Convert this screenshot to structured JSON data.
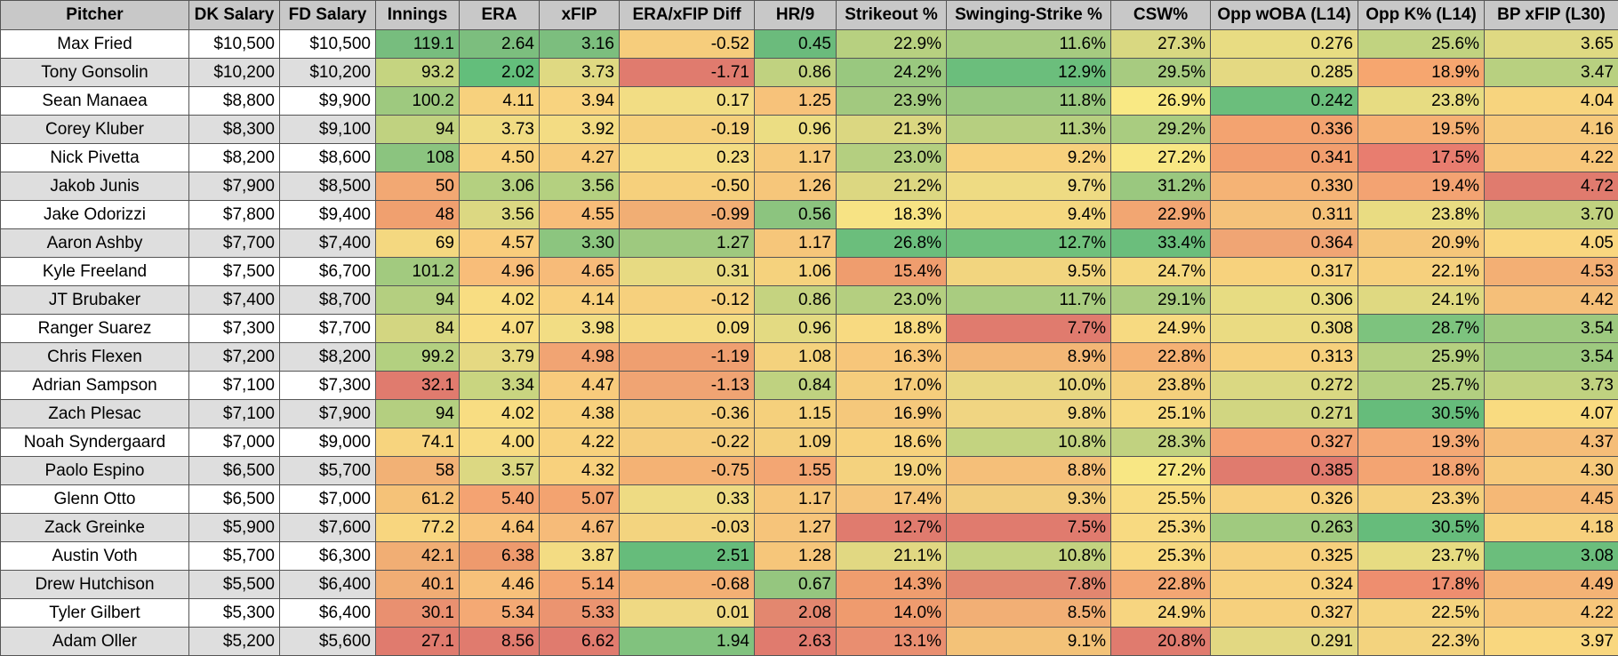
{
  "columns": [
    "Pitcher",
    "DK Salary",
    "FD Salary",
    "Innings",
    "ERA",
    "xFIP",
    "ERA/xFIP Diff",
    "HR/9",
    "Strikeout %",
    "Swinging-Strike %",
    "CSW%",
    "Opp wOBA (L14)",
    "Opp K% (L14)",
    "BP xFIP (L30)"
  ],
  "rows": [
    [
      "Max Fried",
      "$10,500",
      "$10,500",
      "119.1",
      "2.64",
      "3.16",
      "-0.52",
      "0.45",
      "22.9%",
      "11.6%",
      "27.3%",
      "0.276",
      "25.6%",
      "3.65"
    ],
    [
      "Tony Gonsolin",
      "$10,200",
      "$10,200",
      "93.2",
      "2.02",
      "3.73",
      "-1.71",
      "0.86",
      "24.2%",
      "12.9%",
      "29.5%",
      "0.285",
      "18.9%",
      "3.47"
    ],
    [
      "Sean Manaea",
      "$8,800",
      "$9,900",
      "100.2",
      "4.11",
      "3.94",
      "0.17",
      "1.25",
      "23.9%",
      "11.8%",
      "26.9%",
      "0.242",
      "23.8%",
      "4.04"
    ],
    [
      "Corey Kluber",
      "$8,300",
      "$9,100",
      "94",
      "3.73",
      "3.92",
      "-0.19",
      "0.96",
      "21.3%",
      "11.3%",
      "29.2%",
      "0.336",
      "19.5%",
      "4.16"
    ],
    [
      "Nick Pivetta",
      "$8,200",
      "$8,600",
      "108",
      "4.50",
      "4.27",
      "0.23",
      "1.17",
      "23.0%",
      "9.2%",
      "27.2%",
      "0.341",
      "17.5%",
      "4.22"
    ],
    [
      "Jakob Junis",
      "$7,900",
      "$8,500",
      "50",
      "3.06",
      "3.56",
      "-0.50",
      "1.26",
      "21.2%",
      "9.7%",
      "31.2%",
      "0.330",
      "19.4%",
      "4.72"
    ],
    [
      "Jake Odorizzi",
      "$7,800",
      "$9,400",
      "48",
      "3.56",
      "4.55",
      "-0.99",
      "0.56",
      "18.3%",
      "9.4%",
      "22.9%",
      "0.311",
      "23.8%",
      "3.70"
    ],
    [
      "Aaron Ashby",
      "$7,700",
      "$7,400",
      "69",
      "4.57",
      "3.30",
      "1.27",
      "1.17",
      "26.8%",
      "12.7%",
      "33.4%",
      "0.364",
      "20.9%",
      "4.05"
    ],
    [
      "Kyle Freeland",
      "$7,500",
      "$6,700",
      "101.2",
      "4.96",
      "4.65",
      "0.31",
      "1.06",
      "15.4%",
      "9.5%",
      "24.7%",
      "0.317",
      "22.1%",
      "4.53"
    ],
    [
      "JT Brubaker",
      "$7,400",
      "$8,700",
      "94",
      "4.02",
      "4.14",
      "-0.12",
      "0.86",
      "23.0%",
      "11.7%",
      "29.1%",
      "0.306",
      "24.1%",
      "4.42"
    ],
    [
      "Ranger Suarez",
      "$7,300",
      "$7,700",
      "84",
      "4.07",
      "3.98",
      "0.09",
      "0.96",
      "18.8%",
      "7.7%",
      "24.9%",
      "0.308",
      "28.7%",
      "3.54"
    ],
    [
      "Chris Flexen",
      "$7,200",
      "$8,200",
      "99.2",
      "3.79",
      "4.98",
      "-1.19",
      "1.08",
      "16.3%",
      "8.9%",
      "22.8%",
      "0.313",
      "25.9%",
      "3.54"
    ],
    [
      "Adrian Sampson",
      "$7,100",
      "$7,300",
      "32.1",
      "3.34",
      "4.47",
      "-1.13",
      "0.84",
      "17.0%",
      "10.0%",
      "23.8%",
      "0.272",
      "25.7%",
      "3.73"
    ],
    [
      "Zach Plesac",
      "$7,100",
      "$7,900",
      "94",
      "4.02",
      "4.38",
      "-0.36",
      "1.15",
      "16.9%",
      "9.8%",
      "25.1%",
      "0.271",
      "30.5%",
      "4.07"
    ],
    [
      "Noah Syndergaard",
      "$7,000",
      "$9,000",
      "74.1",
      "4.00",
      "4.22",
      "-0.22",
      "1.09",
      "18.6%",
      "10.8%",
      "28.3%",
      "0.327",
      "19.3%",
      "4.37"
    ],
    [
      "Paolo Espino",
      "$6,500",
      "$5,700",
      "58",
      "3.57",
      "4.32",
      "-0.75",
      "1.55",
      "19.0%",
      "8.8%",
      "27.2%",
      "0.385",
      "18.8%",
      "4.30"
    ],
    [
      "Glenn Otto",
      "$6,500",
      "$7,000",
      "61.2",
      "5.40",
      "5.07",
      "0.33",
      "1.17",
      "17.4%",
      "9.3%",
      "25.5%",
      "0.326",
      "23.3%",
      "4.45"
    ],
    [
      "Zack Greinke",
      "$5,900",
      "$7,600",
      "77.2",
      "4.64",
      "4.67",
      "-0.03",
      "1.27",
      "12.7%",
      "7.5%",
      "25.3%",
      "0.263",
      "30.5%",
      "4.18"
    ],
    [
      "Austin Voth",
      "$5,700",
      "$6,300",
      "42.1",
      "6.38",
      "3.87",
      "2.51",
      "1.28",
      "21.1%",
      "10.8%",
      "25.3%",
      "0.325",
      "23.7%",
      "3.08"
    ],
    [
      "Drew Hutchison",
      "$5,500",
      "$6,400",
      "40.1",
      "4.46",
      "5.14",
      "-0.68",
      "0.67",
      "14.3%",
      "7.8%",
      "22.8%",
      "0.324",
      "17.8%",
      "4.49"
    ],
    [
      "Tyler Gilbert",
      "$5,300",
      "$6,400",
      "30.1",
      "5.34",
      "5.33",
      "0.01",
      "2.08",
      "14.0%",
      "8.5%",
      "24.9%",
      "0.327",
      "22.5%",
      "4.22"
    ],
    [
      "Adam Oller",
      "$5,200",
      "$5,600",
      "27.1",
      "8.56",
      "6.62",
      "1.94",
      "2.63",
      "13.1%",
      "9.1%",
      "20.8%",
      "0.291",
      "22.3%",
      "3.97"
    ]
  ],
  "cell_colors": [
    [
      null,
      null,
      null,
      "#77bd7e",
      "#7cbe7e",
      "#7cbe7e",
      "#f6cd7c",
      "#6bbb7c",
      "#b7d080",
      "#a6cb80",
      "#d9d881",
      "#e8dc82",
      "#c1d380",
      "#dfd982"
    ],
    [
      null,
      null,
      null,
      "#c5d480",
      "#63be7b",
      "#dfd982",
      "#e07b6e",
      "#c0d280",
      "#99c87f",
      "#6bbe7c",
      "#a7cb80",
      "#e4d982",
      "#f6a66f",
      "#b8d080"
    ],
    [
      null,
      null,
      null,
      "#9ec97f",
      "#f7d17d",
      "#f8d37f",
      "#f2dd84",
      "#f7c27a",
      "#a2c97f",
      "#9ac87f",
      "#f9e984",
      "#6bbe7c",
      "#e7dc82",
      "#f7d47e"
    ],
    [
      null,
      null,
      null,
      "#c0d280",
      "#f0dc83",
      "#f3dc83",
      "#f5d07c",
      "#ebdd83",
      "#dbd781",
      "#b6cf80",
      "#a9cc80",
      "#f3a370",
      "#f5b074",
      "#f6c97b"
    ],
    [
      null,
      null,
      null,
      "#8bc47f",
      "#f8d27e",
      "#f7cb7b",
      "#f4dc83",
      "#f6c97b",
      "#b4cf80",
      "#f7d17d",
      "#f8e784",
      "#f29e6e",
      "#e87d6f",
      "#f7c67a"
    ],
    [
      null,
      null,
      null,
      "#f2a873",
      "#b4d080",
      "#b4d080",
      "#f6d07c",
      "#f6c67a",
      "#dcd781",
      "#eedb83",
      "#9ac87f",
      "#f5b375",
      "#f3a372",
      "#e07b6e"
    ],
    [
      null,
      null,
      null,
      "#f0a06f",
      "#dcd882",
      "#f8bd79",
      "#f1ae74",
      "#8cc47f",
      "#f7e384",
      "#f5d880",
      "#f2a672",
      "#f5c27a",
      "#e9dc82",
      "#c1d280"
    ],
    [
      null,
      null,
      null,
      "#f4d880",
      "#f9cd7c",
      "#8cc57f",
      "#9ec97f",
      "#f6c67a",
      "#6bbe7c",
      "#70c07c",
      "#6bbe7c",
      "#f0a574",
      "#f5c67a",
      "#f9d67f"
    ],
    [
      null,
      null,
      null,
      "#a2ca7f",
      "#f8bd79",
      "#f7bb79",
      "#e7da82",
      "#f5d27d",
      "#ef9d6e",
      "#f2d57f",
      "#f5d87f",
      "#f7d27d",
      "#f6d07d",
      "#f3af74"
    ],
    [
      null,
      null,
      null,
      "#b4cf80",
      "#f8dd82",
      "#f8d07d",
      "#f6d07d",
      "#c5d380",
      "#b4cf80",
      "#a9cc80",
      "#abcc80",
      "#e7dc82",
      "#dfd981",
      "#f5bf79"
    ],
    [
      null,
      null,
      null,
      "#d3d681",
      "#f8dd82",
      "#f2dd84",
      "#f4dc83",
      "#e3da82",
      "#f8da81",
      "#e07b6e",
      "#f7da81",
      "#eadb82",
      "#7dc37e",
      "#9dc97f"
    ],
    [
      null,
      null,
      null,
      "#b3d080",
      "#e5d982",
      "#f1a473",
      "#ef9f70",
      "#f4d27d",
      "#f7c67a",
      "#f3b776",
      "#f5b174",
      "#f6d07c",
      "#b5d080",
      "#9dc97f"
    ],
    [
      null,
      null,
      null,
      "#e07b6e",
      "#c9d580",
      "#f8cb7c",
      "#f0a473",
      "#bfd280",
      "#f5cd7c",
      "#e8d782",
      "#f4d07c",
      "#dad882",
      "#b2cf80",
      "#c0d280"
    ],
    [
      null,
      null,
      null,
      "#b4cf80",
      "#f8dd82",
      "#f8d17d",
      "#f5ce7c",
      "#f5d07c",
      "#f5c87b",
      "#f0d582",
      "#f7da81",
      "#d1d681",
      "#66bc7b",
      "#f9db80"
    ],
    [
      null,
      null,
      null,
      "#f7d47e",
      "#f8dc82",
      "#f8d27d",
      "#f5cd7c",
      "#f4d07c",
      "#f7d27d",
      "#c3d380",
      "#c1d280",
      "#f3a072",
      "#f4a975",
      "#f5bd78"
    ],
    [
      null,
      null,
      null,
      "#f2b175",
      "#dcd882",
      "#f8d17d",
      "#f4b274",
      "#f3a673",
      "#f4d27e",
      "#f5bf79",
      "#f8e784",
      "#e07b6e",
      "#f3a472",
      "#f6c97b"
    ],
    [
      null,
      null,
      null,
      "#f5c278",
      "#f4a372",
      "#f3a370",
      "#eedb83",
      "#f6c67a",
      "#f5c57b",
      "#f2cd7d",
      "#f8dc81",
      "#f7d07d",
      "#f4d07d",
      "#f5b876"
    ],
    [
      null,
      null,
      null,
      "#f8d67f",
      "#f8c47a",
      "#f6bb79",
      "#f3d47f",
      "#f6c47a",
      "#e07b6e",
      "#e07b6e",
      "#f8da81",
      "#a0ca7f",
      "#66bc7b",
      "#f7d07d"
    ],
    [
      null,
      null,
      null,
      "#f1ae74",
      "#ee9a6d",
      "#f3dc83",
      "#66bc7b",
      "#f6c67a",
      "#e1d882",
      "#c3d380",
      "#f8da81",
      "#f6d07d",
      "#e7dc82",
      "#6bbe7c"
    ],
    [
      null,
      null,
      null,
      "#f1ad74",
      "#f7c17a",
      "#f3a572",
      "#f3b074",
      "#95c67f",
      "#ef9d6e",
      "#e2866f",
      "#f3a673",
      "#f6d07d",
      "#ee8e6f",
      "#f4b375"
    ],
    [
      null,
      null,
      null,
      "#e99070",
      "#f4a974",
      "#eb9470",
      "#efd983",
      "#e3876f",
      "#ef9b6e",
      "#f2af75",
      "#f7d580",
      "#f6d07d",
      "#f5d47f",
      "#f7c67a"
    ],
    [
      null,
      null,
      null,
      "#e07b6e",
      "#e07b6e",
      "#e07b6e",
      "#81c27e",
      "#e07b6e",
      "#e98e70",
      "#f3c278",
      "#e07b6e",
      "#e2d882",
      "#f3d37e",
      "#f9d77f"
    ]
  ]
}
